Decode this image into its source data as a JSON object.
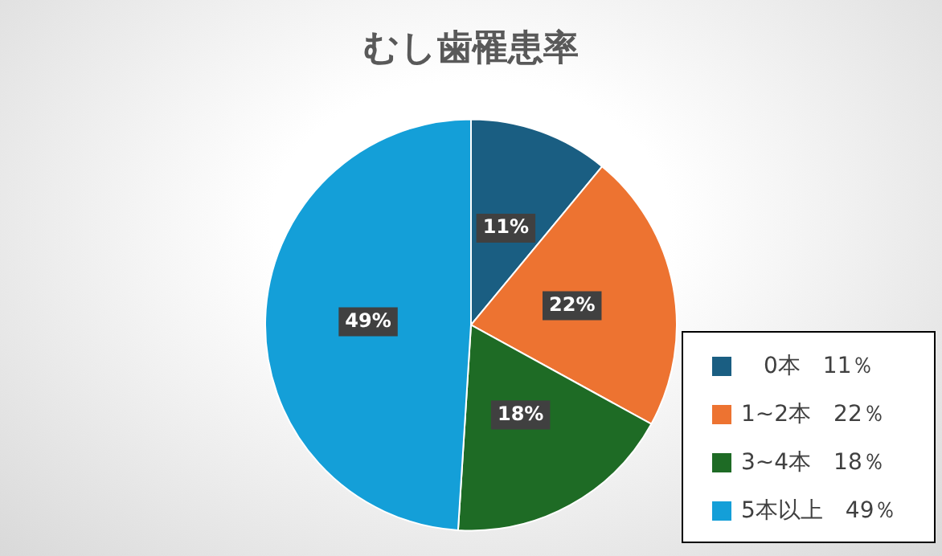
{
  "chart_data": {
    "type": "pie",
    "title": "むし歯罹患率",
    "categories": [
      "　0本　11％",
      "1~2本　22％",
      "3~4本　18％",
      "5本以上　49％"
    ],
    "values": [
      11,
      22,
      18,
      49
    ],
    "colors": [
      "#1a5e82",
      "#ed7331",
      "#1e6b25",
      "#149fd8"
    ],
    "value_labels": [
      "11%",
      "22%",
      "18%",
      "49%"
    ],
    "legend": "bottom right"
  }
}
